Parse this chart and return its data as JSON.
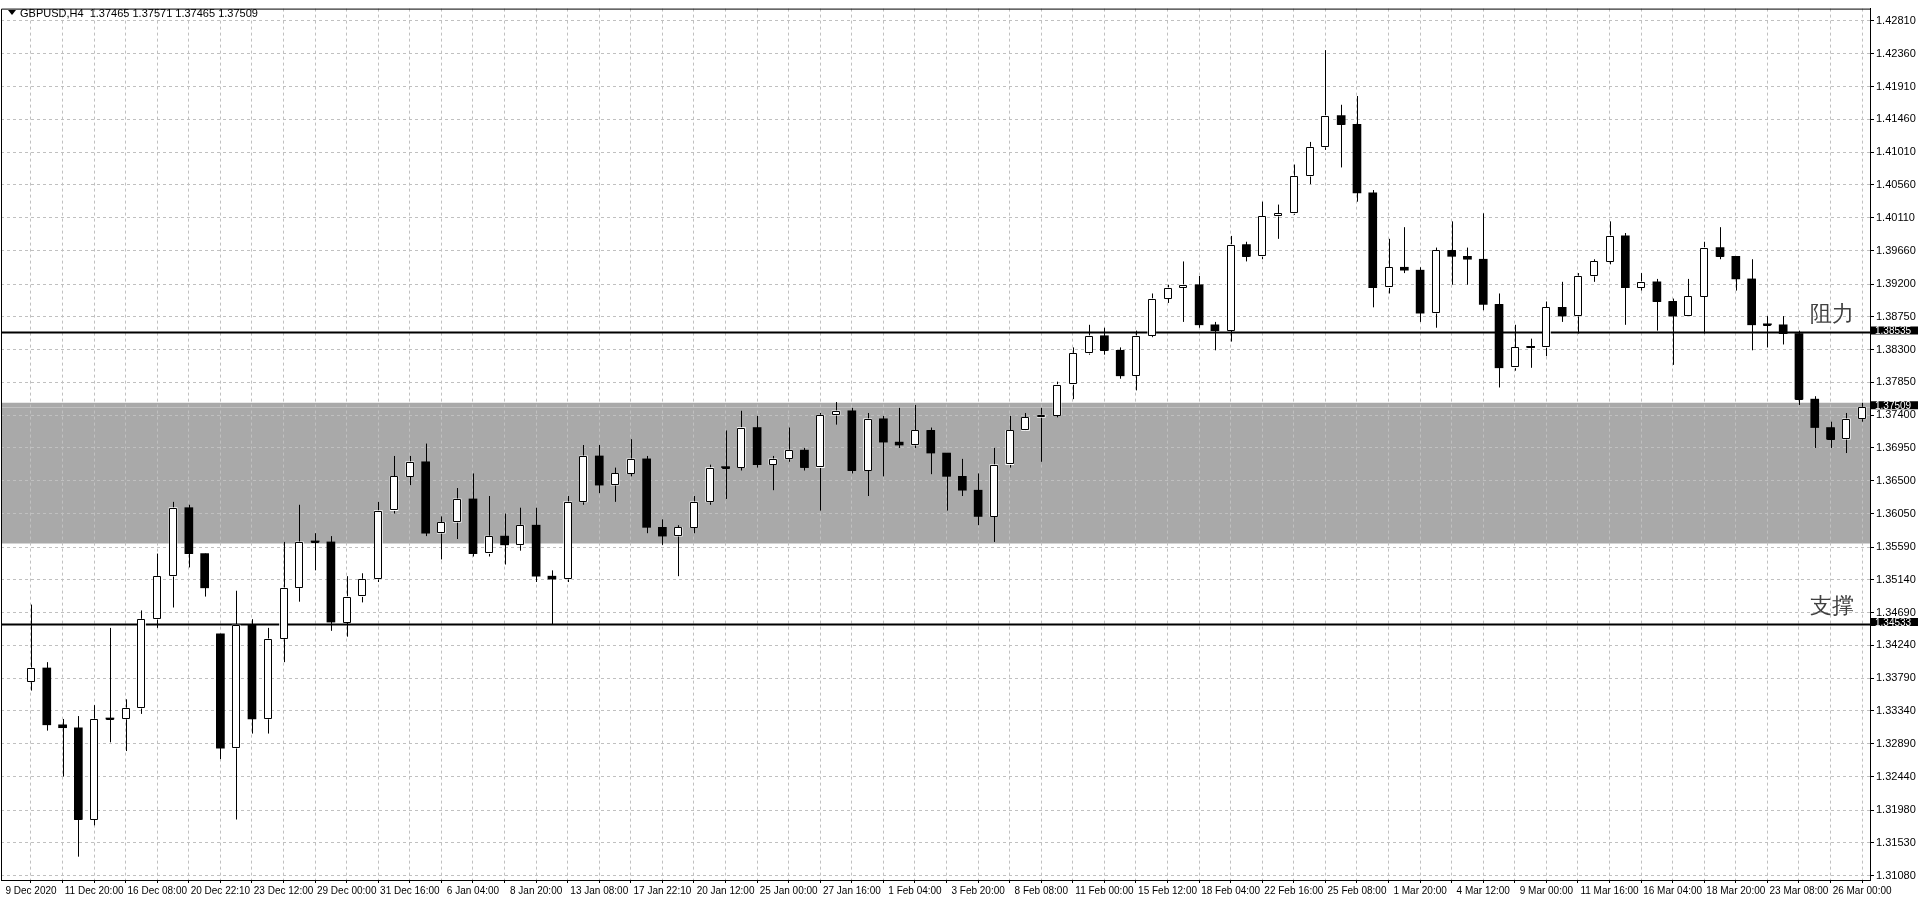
{
  "chart_data": {
    "type": "candlestick",
    "title": "GBPUSD,H4  1.37465 1.37571 1.37465 1.37509",
    "categories": [
      "9 Dec 2020",
      null,
      null,
      null,
      "11 Dec 20:00",
      null,
      null,
      null,
      "16 Dec 08:00",
      null,
      null,
      null,
      "20 Dec 22:10",
      null,
      null,
      null,
      "23 Dec 12:00",
      null,
      null,
      null,
      "29 Dec 00:00",
      null,
      null,
      null,
      "31 Dec 16:00",
      null,
      null,
      null,
      "6 Jan 04:00",
      null,
      null,
      null,
      "8 Jan 20:00",
      null,
      null,
      null,
      "13 Jan 08:00",
      null,
      null,
      null,
      "17 Jan 22:10",
      null,
      null,
      null,
      "20 Jan 12:00",
      null,
      null,
      null,
      "25 Jan 00:00",
      null,
      null,
      null,
      "27 Jan 16:00",
      null,
      null,
      null,
      "1 Feb 04:00",
      null,
      null,
      null,
      "3 Feb 20:00",
      null,
      null,
      null,
      "8 Feb 08:00",
      null,
      null,
      null,
      "11 Feb 00:00",
      null,
      null,
      null,
      "15 Feb 12:00",
      null,
      null,
      null,
      "18 Feb 04:00",
      null,
      null,
      null,
      "22 Feb 16:00",
      null,
      null,
      null,
      "25 Feb 08:00",
      null,
      null,
      null,
      "1 Mar 20:00",
      null,
      null,
      null,
      "4 Mar 12:00",
      null,
      null,
      null,
      "9 Mar 00:00",
      null,
      null,
      null,
      "11 Mar 16:00",
      null,
      null,
      null,
      "16 Mar 04:00",
      null,
      null,
      null,
      "18 Mar 20:00",
      null,
      null,
      null,
      "23 Mar 08:00",
      null,
      null,
      null,
      "26 Mar 00:00"
    ],
    "ohlc": [
      [
        1.3374,
        1.348,
        1.3362,
        1.3393
      ],
      [
        1.3393,
        1.3401,
        1.3307,
        1.3315
      ],
      [
        1.3315,
        1.3323,
        1.3244,
        1.3311
      ],
      [
        1.3311,
        1.3327,
        1.3134,
        1.3185
      ],
      [
        1.3185,
        1.3342,
        1.3177,
        1.3323
      ],
      [
        1.3323,
        1.3448,
        1.3291,
        1.3323
      ],
      [
        1.3323,
        1.335,
        1.3279,
        1.3338
      ],
      [
        1.3338,
        1.3472,
        1.333,
        1.346
      ],
      [
        1.346,
        1.355,
        1.3448,
        1.3519
      ],
      [
        1.3519,
        1.3621,
        1.3476,
        1.3613
      ],
      [
        1.3613,
        1.3617,
        1.3531,
        1.355
      ],
      [
        1.355,
        1.355,
        1.3491,
        1.3503
      ],
      [
        1.344,
        1.344,
        1.3268,
        1.3283
      ],
      [
        1.3283,
        1.3499,
        1.3185,
        1.3452
      ],
      [
        1.3452,
        1.346,
        1.3303,
        1.3323
      ],
      [
        1.3323,
        1.3448,
        1.3303,
        1.3433
      ],
      [
        1.3433,
        1.3566,
        1.3401,
        1.3503
      ],
      [
        1.3503,
        1.3617,
        1.3484,
        1.3566
      ],
      [
        1.3566,
        1.3578,
        1.3527,
        1.3566
      ],
      [
        1.3566,
        1.3574,
        1.3444,
        1.3456
      ],
      [
        1.3456,
        1.3519,
        1.3436,
        1.3491
      ],
      [
        1.3491,
        1.3523,
        1.3483,
        1.3515
      ],
      [
        1.3515,
        1.3621,
        1.3511,
        1.3609
      ],
      [
        1.3609,
        1.3684,
        1.3605,
        1.3656
      ],
      [
        1.3656,
        1.3684,
        1.3644,
        1.3676
      ],
      [
        1.3676,
        1.3701,
        1.3574,
        1.3578
      ],
      [
        1.3578,
        1.3601,
        1.3542,
        1.3593
      ],
      [
        1.3593,
        1.364,
        1.357,
        1.3625
      ],
      [
        1.3625,
        1.366,
        1.3546,
        1.355
      ],
      [
        1.355,
        1.3629,
        1.3546,
        1.3574
      ],
      [
        1.3574,
        1.3605,
        1.3535,
        1.3562
      ],
      [
        1.3562,
        1.3613,
        1.3554,
        1.3589
      ],
      [
        1.3589,
        1.3613,
        1.3511,
        1.3519
      ],
      [
        1.3519,
        1.3527,
        1.3452,
        1.3515
      ],
      [
        1.3515,
        1.3629,
        1.3511,
        1.3621
      ],
      [
        1.3621,
        1.3699,
        1.3617,
        1.3684
      ],
      [
        1.3684,
        1.3699,
        1.3633,
        1.3644
      ],
      [
        1.3644,
        1.3668,
        1.3621,
        1.366
      ],
      [
        1.366,
        1.3707,
        1.3656,
        1.368
      ],
      [
        1.368,
        1.3684,
        1.3578,
        1.3586
      ],
      [
        1.3586,
        1.3597,
        1.3562,
        1.3574
      ],
      [
        1.3574,
        1.3589,
        1.3519,
        1.3586
      ],
      [
        1.3586,
        1.3629,
        1.3578,
        1.3621
      ],
      [
        1.3621,
        1.3672,
        1.3617,
        1.3668
      ],
      [
        1.3668,
        1.3719,
        1.3625,
        1.3668
      ],
      [
        1.3668,
        1.3746,
        1.3664,
        1.3723
      ],
      [
        1.3723,
        1.3739,
        1.3668,
        1.3672
      ],
      [
        1.3672,
        1.3684,
        1.3637,
        1.368
      ],
      [
        1.368,
        1.3723,
        1.3676,
        1.3692
      ],
      [
        1.3692,
        1.3695,
        1.3664,
        1.3668
      ],
      [
        1.3668,
        1.3743,
        1.3609,
        1.374
      ],
      [
        1.374,
        1.3758,
        1.3727,
        1.3746
      ],
      [
        1.3746,
        1.375,
        1.366,
        1.3664
      ],
      [
        1.3664,
        1.3743,
        1.3629,
        1.3735
      ],
      [
        1.3735,
        1.3739,
        1.3656,
        1.3703
      ],
      [
        1.3703,
        1.375,
        1.3695,
        1.3699
      ],
      [
        1.3699,
        1.3754,
        1.3695,
        1.3719
      ],
      [
        1.3719,
        1.3723,
        1.3659,
        1.3688
      ],
      [
        1.3688,
        1.3688,
        1.3609,
        1.3656
      ],
      [
        1.3656,
        1.368,
        1.3629,
        1.3637
      ],
      [
        1.3637,
        1.366,
        1.3589,
        1.3601
      ],
      [
        1.3601,
        1.3695,
        1.3566,
        1.3672
      ],
      [
        1.3672,
        1.3739,
        1.3668,
        1.3719
      ],
      [
        1.3719,
        1.3743,
        1.3719,
        1.3737
      ],
      [
        1.3737,
        1.375,
        1.3676,
        1.374
      ],
      [
        1.374,
        1.3786,
        1.3737,
        1.3782
      ],
      [
        1.3782,
        1.3833,
        1.3762,
        1.3825
      ],
      [
        1.3825,
        1.3864,
        1.3823,
        1.3849
      ],
      [
        1.3849,
        1.386,
        1.3823,
        1.3829
      ],
      [
        1.3829,
        1.3833,
        1.379,
        1.3794
      ],
      [
        1.3794,
        1.3856,
        1.3774,
        1.3849
      ],
      [
        1.3849,
        1.3907,
        1.3847,
        1.39
      ],
      [
        1.39,
        1.3919,
        1.3894,
        1.3915
      ],
      [
        1.3915,
        1.3951,
        1.3868,
        1.3919
      ],
      [
        1.3919,
        1.3931,
        1.386,
        1.3864
      ],
      [
        1.3864,
        1.3868,
        1.3829,
        1.3856
      ],
      [
        1.3856,
        1.3986,
        1.3841,
        1.3974
      ],
      [
        1.3974,
        1.3978,
        1.3951,
        1.3958
      ],
      [
        1.3958,
        1.4033,
        1.3954,
        1.4013
      ],
      [
        1.4013,
        1.4029,
        1.3982,
        1.4017
      ],
      [
        1.4017,
        1.4084,
        1.4015,
        1.4068
      ],
      [
        1.4068,
        1.4115,
        1.4057,
        1.4108
      ],
      [
        1.4108,
        1.4241,
        1.4104,
        1.4151
      ],
      [
        1.4151,
        1.4166,
        1.408,
        1.4139
      ],
      [
        1.4139,
        1.4178,
        1.4033,
        1.4045
      ],
      [
        1.4045,
        1.4049,
        1.3888,
        1.3915
      ],
      [
        1.3915,
        1.3982,
        1.3907,
        1.3943
      ],
      [
        1.3943,
        1.3998,
        1.3935,
        1.3939
      ],
      [
        1.3939,
        1.3943,
        1.3868,
        1.388
      ],
      [
        1.388,
        1.397,
        1.386,
        1.3966
      ],
      [
        1.3966,
        1.4006,
        1.3919,
        1.3958
      ],
      [
        1.3958,
        1.397,
        1.3919,
        1.3954
      ],
      [
        1.3954,
        1.4017,
        1.3884,
        1.3892
      ],
      [
        1.3892,
        1.3907,
        1.3778,
        1.3805
      ],
      [
        1.3805,
        1.3864,
        1.3801,
        1.3833
      ],
      [
        1.3833,
        1.3845,
        1.3805,
        1.3833
      ],
      [
        1.3833,
        1.3896,
        1.3821,
        1.3888
      ],
      [
        1.3888,
        1.3923,
        1.3868,
        1.3876
      ],
      [
        1.3876,
        1.3935,
        1.3852,
        1.3931
      ],
      [
        1.3931,
        1.3954,
        1.3923,
        1.3951
      ],
      [
        1.3951,
        1.4006,
        1.3947,
        1.3986
      ],
      [
        1.3986,
        1.399,
        1.3864,
        1.3915
      ],
      [
        1.3915,
        1.3935,
        1.3911,
        1.3923
      ],
      [
        1.3923,
        1.3927,
        1.3856,
        1.3896
      ],
      [
        1.3896,
        1.39,
        1.3809,
        1.3876
      ],
      [
        1.3876,
        1.3927,
        1.3876,
        1.3903
      ],
      [
        1.3903,
        1.3978,
        1.3852,
        1.397
      ],
      [
        1.397,
        1.3998,
        1.3954,
        1.3958
      ],
      [
        1.3958,
        1.3958,
        1.3911,
        1.3927
      ],
      [
        1.3927,
        1.3954,
        1.3829,
        1.3864
      ],
      [
        1.3864,
        1.3876,
        1.3833,
        1.3864
      ],
      [
        1.3864,
        1.3876,
        1.3837,
        1.3852
      ],
      [
        1.3852,
        1.3856,
        1.3754,
        1.3762
      ],
      [
        1.3762,
        1.3766,
        1.3695,
        1.3723
      ],
      [
        1.3723,
        1.3731,
        1.3695,
        1.3707
      ],
      [
        1.3707,
        1.3743,
        1.3688,
        1.3735
      ],
      [
        1.3735,
        1.3757,
        1.3731,
        1.37509
      ]
    ],
    "colors": [
      "#ffffff",
      "#000000",
      "#000000",
      "#000000",
      "#ffffff",
      "#000000",
      "#ffffff",
      "#ffffff",
      "#ffffff",
      "#ffffff",
      "#000000",
      "#000000",
      "#000000",
      "#ffffff",
      "#000000",
      "#ffffff",
      "#ffffff",
      "#ffffff",
      "#000000",
      "#000000",
      "#ffffff",
      "#ffffff",
      "#ffffff",
      "#ffffff",
      "#ffffff",
      "#000000",
      "#ffffff",
      "#ffffff",
      "#000000",
      "#ffffff",
      "#000000",
      "#ffffff",
      "#000000",
      "#000000",
      "#ffffff",
      "#ffffff",
      "#000000",
      "#ffffff",
      "#ffffff",
      "#000000",
      "#000000",
      "#ffffff",
      "#ffffff",
      "#ffffff",
      "#000000",
      "#ffffff",
      "#000000",
      "#ffffff",
      "#ffffff",
      "#000000",
      "#ffffff",
      "#ffffff",
      "#000000",
      "#ffffff",
      "#000000",
      "#000000",
      "#ffffff",
      "#000000",
      "#000000",
      "#000000",
      "#000000",
      "#ffffff",
      "#ffffff",
      "#ffffff",
      "#ffffff",
      "#ffffff",
      "#ffffff",
      "#ffffff",
      "#000000",
      "#000000",
      "#ffffff",
      "#ffffff",
      "#ffffff",
      "#ffffff",
      "#000000",
      "#000000",
      "#ffffff",
      "#000000",
      "#ffffff",
      "#ffffff",
      "#ffffff",
      "#ffffff",
      "#ffffff",
      "#000000",
      "#000000",
      "#000000",
      "#ffffff",
      "#000000",
      "#000000",
      "#ffffff",
      "#000000",
      "#000000",
      "#000000",
      "#000000",
      "#ffffff",
      "#000000",
      "#ffffff",
      "#000000",
      "#ffffff",
      "#ffffff",
      "#ffffff",
      "#000000",
      "#ffffff",
      "#000000",
      "#000000",
      "#ffffff",
      "#ffffff",
      "#000000",
      "#000000",
      "#000000",
      "#000000",
      "#000000",
      "#000000",
      "#000000",
      "#000000",
      "#ffffff",
      "#ffffff"
    ],
    "ylim": [
      1.3102,
      1.4298
    ],
    "yticks": [
      {
        "value": 1.3108,
        "label": "1.31080"
      },
      {
        "value": 1.3153,
        "label": "1.31530"
      },
      {
        "value": 1.3198,
        "label": "1.31980"
      },
      {
        "value": 1.3244,
        "label": "1.32440"
      },
      {
        "value": 1.3289,
        "label": "1.32890"
      },
      {
        "value": 1.3334,
        "label": "1.33340"
      },
      {
        "value": 1.3379,
        "label": "1.33790"
      },
      {
        "value": 1.3424,
        "label": "1.34240"
      },
      {
        "value": 1.3469,
        "label": "1.34690"
      },
      {
        "value": 1.3514,
        "label": "1.35140"
      },
      {
        "value": 1.3559,
        "label": "1.35590"
      },
      {
        "value": 1.3605,
        "label": "1.36050"
      },
      {
        "value": 1.365,
        "label": "1.36500"
      },
      {
        "value": 1.3695,
        "label": "1.36950"
      },
      {
        "value": 1.374,
        "label": "1.37400"
      },
      {
        "value": 1.3785,
        "label": "1.37850"
      },
      {
        "value": 1.383,
        "label": "1.38300"
      },
      {
        "value": 1.3875,
        "label": "1.38750"
      },
      {
        "value": 1.392,
        "label": "1.39200"
      },
      {
        "value": 1.3966,
        "label": "1.39660"
      },
      {
        "value": 1.4011,
        "label": "1.40110"
      },
      {
        "value": 1.4056,
        "label": "1.40560"
      },
      {
        "value": 1.4101,
        "label": "1.41010"
      },
      {
        "value": 1.4146,
        "label": "1.41460"
      },
      {
        "value": 1.4191,
        "label": "1.41910"
      },
      {
        "value": 1.4236,
        "label": "1.42360"
      },
      {
        "value": 1.4281,
        "label": "1.42810"
      }
    ],
    "grid": true,
    "ref_lines": [
      {
        "axis": "y",
        "value": 1.38535,
        "label": "阻力",
        "color": "#000000"
      },
      {
        "axis": "y",
        "value": 1.34533,
        "label": "支撑",
        "color": "#000000"
      },
      {
        "axis": "y",
        "value": 1.37509,
        "color": "#c0c0c0"
      }
    ],
    "bands": [
      {
        "axis": "y",
        "from": 1.3564,
        "to": 1.3757,
        "color": "#a9a9a9"
      }
    ],
    "annotations": [
      "1.38535",
      "1.34533",
      "1.37509"
    ]
  }
}
